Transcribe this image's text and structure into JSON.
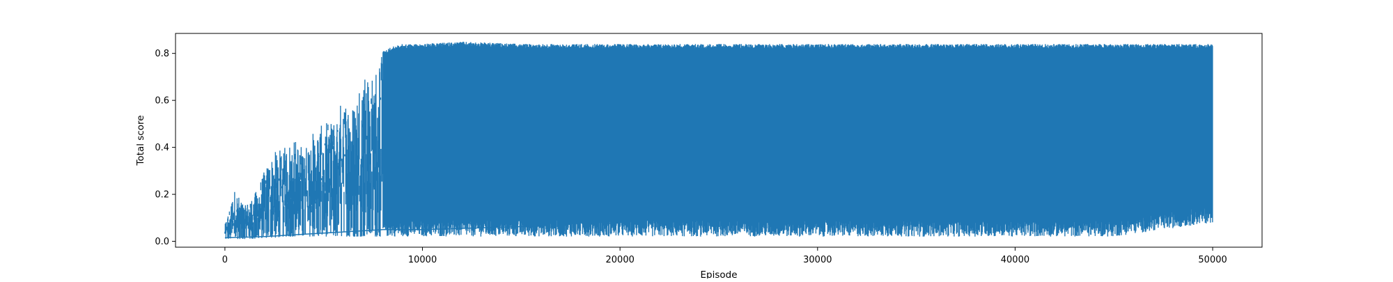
{
  "chart_data": {
    "type": "line",
    "title": "",
    "xlabel": "Episode",
    "ylabel": "Total score",
    "xlim": [
      -2500,
      52500
    ],
    "ylim": [
      -0.025,
      0.885
    ],
    "xticks": [
      0,
      10000,
      20000,
      30000,
      40000,
      50000
    ],
    "xtick_labels": [
      "0",
      "10000",
      "20000",
      "30000",
      "40000",
      "50000"
    ],
    "yticks": [
      0.0,
      0.2,
      0.4,
      0.6,
      0.8
    ],
    "ytick_labels": [
      "0.0",
      "0.2",
      "0.4",
      "0.6",
      "0.8"
    ],
    "grid": false,
    "legend": "none",
    "series": [
      {
        "color": "#1f77b4",
        "envelope_x": [
          0,
          500,
          1000,
          1500,
          2000,
          2500,
          3000,
          3500,
          4000,
          4500,
          5000,
          5500,
          6000,
          6500,
          7000,
          7500,
          7800,
          8000,
          8500,
          9000,
          10000,
          12000,
          15000,
          20000,
          25000,
          30000,
          35000,
          40000,
          45000,
          50000
        ],
        "upper_envelope": [
          0.07,
          0.22,
          0.15,
          0.2,
          0.3,
          0.38,
          0.4,
          0.44,
          0.4,
          0.47,
          0.5,
          0.52,
          0.62,
          0.58,
          0.75,
          0.7,
          0.8,
          0.81,
          0.83,
          0.84,
          0.84,
          0.85,
          0.84,
          0.84,
          0.84,
          0.84,
          0.84,
          0.84,
          0.84,
          0.84
        ],
        "lower_envelope": [
          0.01,
          0.01,
          0.01,
          0.01,
          0.015,
          0.015,
          0.02,
          0.02,
          0.02,
          0.02,
          0.02,
          0.02,
          0.02,
          0.02,
          0.02,
          0.02,
          0.02,
          0.02,
          0.02,
          0.02,
          0.02,
          0.02,
          0.02,
          0.02,
          0.02,
          0.02,
          0.02,
          0.02,
          0.02,
          0.08
        ],
        "trend_x": [
          0,
          2000,
          4000,
          6000,
          8000,
          10000,
          12000,
          14000,
          16000
        ],
        "trend_y": [
          0.015,
          0.02,
          0.03,
          0.04,
          0.05,
          0.05,
          0.055,
          0.06,
          0.065
        ]
      }
    ]
  }
}
